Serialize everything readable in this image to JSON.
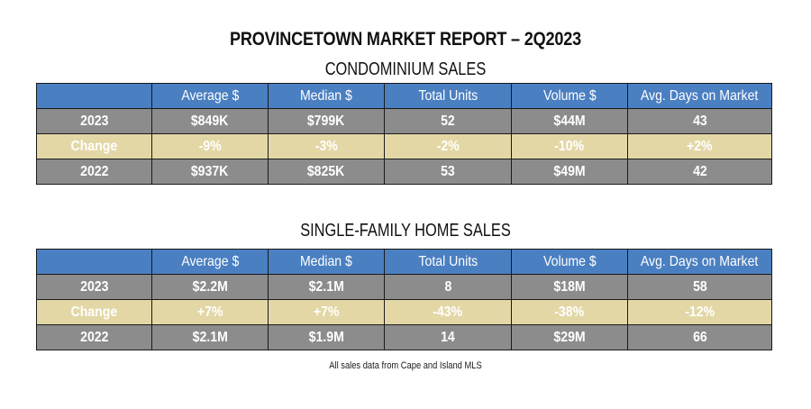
{
  "title": "PROVINCETOWN MARKET REPORT – 2Q2023",
  "columns": [
    "",
    "Average $",
    "Median $",
    "Total Units",
    "Volume $",
    "Avg. Days on Market"
  ],
  "condo": {
    "heading": "CONDOMINIUM SALES",
    "rows": [
      {
        "label": "2023",
        "values": [
          "$849K",
          "$799K",
          "52",
          "$44M",
          "43"
        ]
      },
      {
        "label": "Change",
        "values": [
          "-9%",
          "-3%",
          "-2%",
          "-10%",
          "+2%"
        ]
      },
      {
        "label": "2022",
        "values": [
          "$937K",
          "$825K",
          "53",
          "$49M",
          "42"
        ]
      }
    ]
  },
  "single_family": {
    "heading": "SINGLE-FAMILY HOME SALES",
    "rows": [
      {
        "label": "2023",
        "values": [
          "$2.2M",
          "$2.1M",
          "8",
          "$18M",
          "58"
        ]
      },
      {
        "label": "Change",
        "values": [
          "+7%",
          "+7%",
          "-43%",
          "-38%",
          "-12%"
        ]
      },
      {
        "label": "2022",
        "values": [
          "$2.1M",
          "$1.9M",
          "14",
          "$29M",
          "66"
        ]
      }
    ]
  },
  "footnote": "All sales data from Cape and Island MLS",
  "colors": {
    "header_blue": "#4a7fc1",
    "row_gray": "#8c8c8c",
    "change_tan": "#e3d7a6",
    "border": "#1a1a1a"
  }
}
